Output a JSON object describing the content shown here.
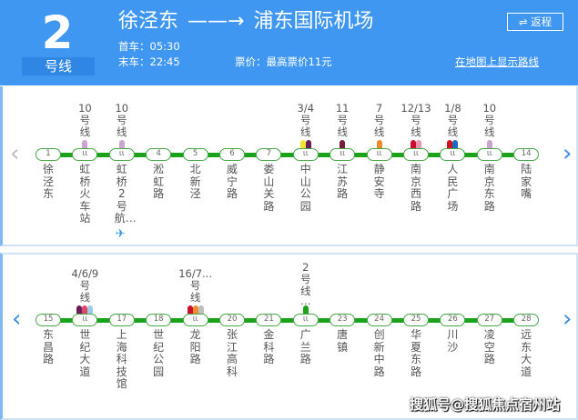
{
  "header": {
    "line_number": "2",
    "line_label": "号线",
    "from": "徐泾东",
    "arrow": "——→",
    "to": "浦东国际机场",
    "first_train": "首车：05:30",
    "last_train": "末车：22:45",
    "fare": "票价：最高票价11元",
    "return_button": "⇌ 返程",
    "map_link": "在地图上显示路线",
    "color": "#3f97f2"
  },
  "line_color": "#1aa31a",
  "rows": [
    {
      "stations": [
        {
          "id": "1",
          "name": "徐泾东"
        },
        {
          "id": "2",
          "name": "虹桥火车站",
          "transfer": "10",
          "colors": [
            "#c9a6cf"
          ]
        },
        {
          "id": "3",
          "name": "虹桥2号航…",
          "transfer": "10",
          "colors": [
            "#c9a6cf"
          ],
          "airport": true
        },
        {
          "id": "4",
          "name": "淞虹路"
        },
        {
          "id": "5",
          "name": "北新泾"
        },
        {
          "id": "6",
          "name": "威宁路"
        },
        {
          "id": "7",
          "name": "娄山关路"
        },
        {
          "id": "8",
          "name": "中山公园",
          "transfer": "3/4",
          "colors": [
            "#f2e232",
            "#6b1e5a"
          ]
        },
        {
          "id": "9",
          "name": "江苏路",
          "transfer": "11",
          "colors": [
            "#7a1c3c"
          ]
        },
        {
          "id": "10",
          "name": "静安寺",
          "transfer": "7",
          "colors": [
            "#ef8b2a"
          ]
        },
        {
          "id": "11",
          "name": "南京西路",
          "transfer": "12/13",
          "colors": [
            "#c8102e",
            "#e895b4"
          ]
        },
        {
          "id": "12",
          "name": "人民广场",
          "transfer": "1/8",
          "colors": [
            "#d0161b",
            "#1f6bc1"
          ]
        },
        {
          "id": "13",
          "name": "南京东路",
          "transfer": "10",
          "colors": [
            "#c9a6cf"
          ]
        },
        {
          "id": "14",
          "name": "陆家嘴"
        }
      ]
    },
    {
      "stations": [
        {
          "id": "15",
          "name": "东昌路"
        },
        {
          "id": "16",
          "name": "世纪大道",
          "transfer": "4/6/9",
          "colors": [
            "#6b1e5a",
            "#e0476b",
            "#9fcbe8"
          ]
        },
        {
          "id": "17",
          "name": "上海科技馆"
        },
        {
          "id": "18",
          "name": "世纪公园"
        },
        {
          "id": "19",
          "name": "龙阳路",
          "transfer": "16/7...",
          "colors": [
            "#c8102e",
            "#ef8b2a",
            "#bdbdbd"
          ]
        },
        {
          "id": "20",
          "name": "张江高科"
        },
        {
          "id": "21",
          "name": "金科路"
        },
        {
          "id": "22",
          "name": "广兰路",
          "transfer": "2",
          "colors": [
            "#1aa31a"
          ],
          "more": "…"
        },
        {
          "id": "23",
          "name": "唐镇"
        },
        {
          "id": "24",
          "name": "创新中路"
        },
        {
          "id": "25",
          "name": "华夏东路"
        },
        {
          "id": "26",
          "name": "川沙"
        },
        {
          "id": "27",
          "name": "凌空路"
        },
        {
          "id": "28",
          "name": "远东大道"
        }
      ]
    }
  ],
  "transfer_suffix": "号线",
  "transfer_glyph": "ιι",
  "nav": {
    "prev": "‹",
    "next": "›"
  },
  "watermark": "搜狐号@搜狐焦点宿州站"
}
